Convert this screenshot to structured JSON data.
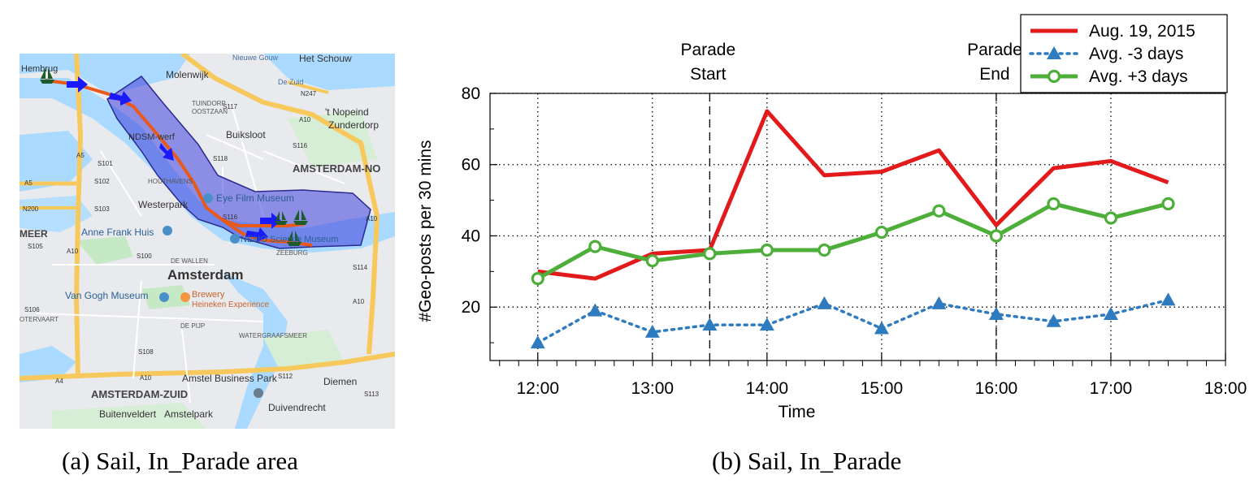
{
  "captions": {
    "a": "(a)  Sail, In_Parade area",
    "b": "(b)  Sail, In_Parade"
  },
  "map": {
    "labels": {
      "hembrug": "Hembrug",
      "nieuwe_gouw": "Nieuwe Gouw",
      "het_schouw": "Het Schouw",
      "molenwijk": "Molenwijk",
      "de_zuid": "De Zuid",
      "n247": "N247",
      "tuindorp": "TUINDORP",
      "oostzaan": "OOSTZAAN",
      "s117": "S117",
      "nopeind": "'t Nopeind",
      "zunderdorp": "Zunderdorp",
      "ndsm": "NDSM-werf",
      "buiksloot": "Buiksloot",
      "a10_n": "A10",
      "s116_n": "S116",
      "a5": "A5",
      "s118": "S118",
      "amsterdam_noord": "AMSTERDAM-NO",
      "s101": "S101",
      "a5_w": "A5",
      "s102": "S102",
      "houthavens": "HOUTHAVENS",
      "eye": "Eye Film Museum",
      "westerpark": "Westerpark",
      "n200": "N200",
      "s103": "S103",
      "s116": "S116",
      "a10_e": "A10",
      "meer": "MEER",
      "anne_frank": "Anne Frank Huis",
      "nemo": "NEMO Science Museum",
      "zeeburg": "ZEEBURG",
      "s105": "S105",
      "a10_w": "A10",
      "s100": "S100",
      "s114": "S114",
      "de_wallen": "DE WALLEN",
      "amsterdam": "Amsterdam",
      "brewery": "Brewery",
      "heineken": "Heineken Experience",
      "van_gogh": "Van Gogh Museum",
      "a10_e2": "A10",
      "s106": "S106",
      "otervaart": "OTERVAART",
      "de_pijp": "DE PIJP",
      "watergraafsmeer": "WATERGRAAFSMEER",
      "s108": "S108",
      "a4": "A4",
      "a10_s": "A10",
      "amstel": "Amstel Business Park",
      "s112": "S112",
      "diemen": "Diemen",
      "amsterdam_zuid": "AMSTERDAM-ZUID",
      "duivendrecht": "Duivendrecht",
      "buitenveldert": "Buitenveldert",
      "amstelpark": "Amstelpark",
      "s113": "S113"
    },
    "icons": [
      "ship-icon",
      "arrow-icon",
      "pin-icon"
    ],
    "colors": {
      "water": "#aadaff",
      "land": "#e8eaed",
      "park": "#c5e8c5",
      "highway": "#f7c95c",
      "area": "#3f3fdc",
      "route": "#e8591a",
      "arrow": "#1a1aff",
      "ship": "#1e5b2a"
    }
  },
  "chart_data": {
    "type": "line",
    "x": [
      "12:00",
      "12:30",
      "13:00",
      "13:30",
      "14:00",
      "14:30",
      "15:00",
      "15:30",
      "16:00",
      "16:30",
      "17:00",
      "17:30"
    ],
    "x_ticks": [
      "12:00",
      "13:00",
      "14:00",
      "15:00",
      "16:00",
      "17:00",
      "18:00"
    ],
    "xlim": [
      "11:35",
      "18:00"
    ],
    "ylim": [
      5,
      80
    ],
    "y_ticks": [
      20,
      40,
      60,
      80
    ],
    "xlabel": "Time",
    "ylabel": "#Geo-posts per 30 mins",
    "grid": true,
    "legend_position": "top-right",
    "series": [
      {
        "name": "Aug. 19, 2015",
        "color": "#e31a1c",
        "style": "solid",
        "marker": "none",
        "values": [
          30,
          28,
          35,
          36,
          75,
          57,
          58,
          64,
          43,
          59,
          61,
          55
        ]
      },
      {
        "name": "Avg.  -3 days",
        "color": "#2f7bbf",
        "style": "dotted",
        "marker": "triangle",
        "values": [
          10,
          19,
          13,
          15,
          15,
          21,
          14,
          21,
          18,
          16,
          18,
          22
        ]
      },
      {
        "name": "Avg. +3 days",
        "color": "#4daf3a",
        "style": "solid",
        "marker": "circle",
        "values": [
          28,
          37,
          33,
          35,
          36,
          36,
          41,
          47,
          40,
          49,
          45,
          49
        ]
      }
    ],
    "annotations": [
      {
        "x": "13:30",
        "line1": "Parade",
        "line2": "Start"
      },
      {
        "x": "16:00",
        "line1": "Parade",
        "line2": "End"
      }
    ]
  }
}
